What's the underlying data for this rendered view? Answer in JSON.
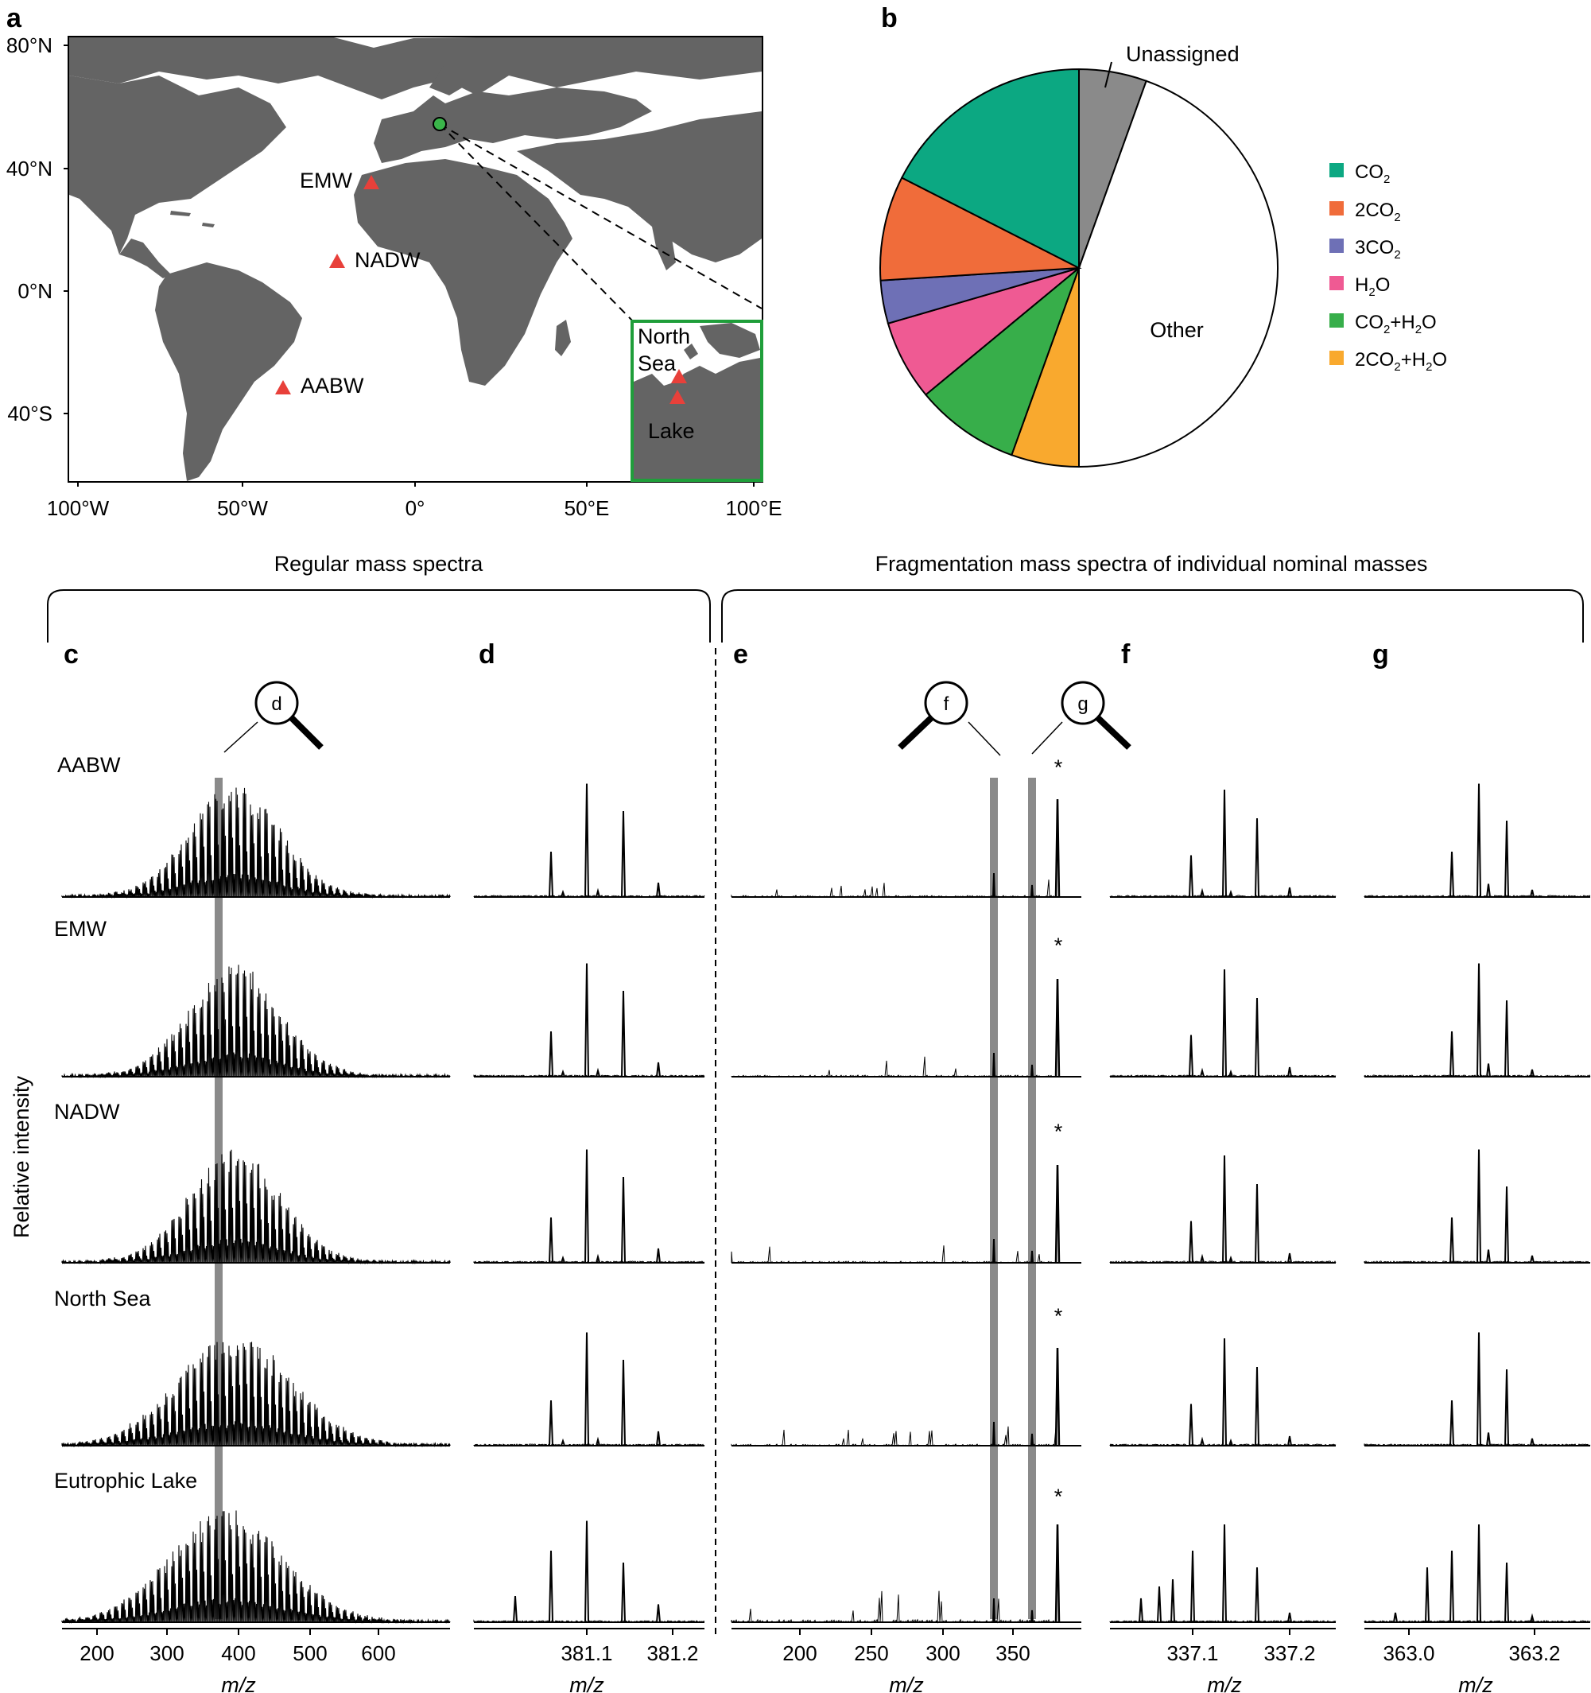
{
  "panels": {
    "a": "a",
    "b": "b",
    "c": "c",
    "d": "d",
    "e": "e",
    "f": "f",
    "g": "g"
  },
  "brackets": {
    "regular": "Regular mass spectra",
    "fragmentation": "Fragmentation mass spectra of individual nominal masses"
  },
  "map": {
    "lat_ticks": [
      "80°N",
      "40°N",
      "0°N",
      "40°S"
    ],
    "lon_ticks": [
      "100°W",
      "50°W",
      "0°",
      "50°E",
      "100°E"
    ],
    "sites": [
      "EMW",
      "NADW",
      "AABW",
      "North Sea",
      "Lake"
    ],
    "inset_labels": [
      "North",
      "Sea",
      "Lake"
    ],
    "colors": {
      "land": "#646464",
      "ocean": "#ffffff",
      "site_marker": "#e8403a",
      "origin_marker": "#3ab54a",
      "inset_frame": "#1f9e3a"
    }
  },
  "magnifiers": {
    "d": "d",
    "f": "f",
    "g": "g"
  },
  "samples": [
    "AABW",
    "EMW",
    "NADW",
    "North Sea",
    "Eutrophic Lake"
  ],
  "ylabel": "Relative intensity",
  "asterisk": "*",
  "xlabel": "m/z",
  "chart_data": [
    {
      "type": "pie",
      "panel": "b",
      "slices": [
        {
          "label": "Unassigned",
          "value": 5.5,
          "color": "#8a8a8a"
        },
        {
          "label": "Other",
          "value": 44.5,
          "color": "#ffffff"
        },
        {
          "label": "2CO2+H2O",
          "value": 5.5,
          "color": "#f9a92e"
        },
        {
          "label": "CO2+H2O",
          "value": 8.5,
          "color": "#37ae4a"
        },
        {
          "label": "H2O",
          "value": 6.5,
          "color": "#ef5a93"
        },
        {
          "label": "3CO2",
          "value": 3.5,
          "color": "#6e70b6"
        },
        {
          "label": "2CO2",
          "value": 8.5,
          "color": "#f06c3a"
        },
        {
          "label": "CO2",
          "value": 17.5,
          "color": "#0ca882"
        }
      ],
      "legend": [
        "CO2",
        "2CO2",
        "3CO2",
        "H2O",
        "CO2+H2O",
        "2CO2+H2O"
      ],
      "legend_placement": "right"
    },
    {
      "type": "line",
      "panel": "c",
      "x_ticks": [
        "200",
        "300",
        "400",
        "500",
        "600"
      ],
      "xlim": [
        150,
        700
      ],
      "xlabel": "m/z",
      "highlight_mz": 375
    },
    {
      "type": "line",
      "panel": "d",
      "x_ticks": [
        "381.1",
        "381.2"
      ],
      "xlim": [
        381.0,
        381.22
      ],
      "xlabel": "m/z"
    },
    {
      "type": "line",
      "panel": "e",
      "x_ticks": [
        "200",
        "250",
        "300",
        "350"
      ],
      "xlim": [
        150,
        400
      ],
      "xlabel": "m/z",
      "highlight_mz": [
        337,
        363
      ],
      "precursor_mz": 381
    },
    {
      "type": "line",
      "panel": "f",
      "x_ticks": [
        "337.1",
        "337.2"
      ],
      "xlim": [
        337.0,
        337.23
      ],
      "xlabel": "m/z"
    },
    {
      "type": "line",
      "panel": "g",
      "x_ticks": [
        "363.0",
        "363.2"
      ],
      "xlim": [
        362.98,
        363.25
      ],
      "xlabel": "m/z"
    }
  ]
}
